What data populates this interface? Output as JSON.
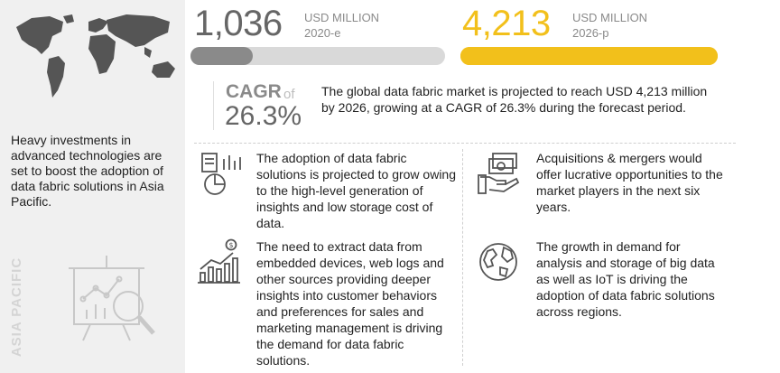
{
  "left": {
    "description": "Heavy investments in advanced technologies are set to boost the adoption of data fabric solutions in Asia Pacific.",
    "region": "ASIA PACIFIC",
    "map_icon": "world-map-icon",
    "analysis_icon": "analysis-magnifier-icon"
  },
  "stats": [
    {
      "value": "1,036",
      "unit": "USD MILLION",
      "year": "2020-e",
      "color": "#666666",
      "bar_fill_color": "#8a8a8a",
      "bar_track_color": "#d9d9d9",
      "bar_fill_fraction": 0.246
    },
    {
      "value": "4,213",
      "unit": "USD MILLION",
      "year": "2026-p",
      "color": "#f2c01b",
      "bar_fill_color": "#f2c01b",
      "bar_track_color": "#f2c01b",
      "bar_fill_fraction": 1.0
    }
  ],
  "cagr": {
    "label": "CAGR",
    "of": "of",
    "value": "26.3%",
    "summary": "The global data fabric market is projected to reach USD 4,213 million by 2026, growing at a CAGR of 26.3% during the forecast period."
  },
  "features": [
    {
      "icon": "pie-chart-report-icon",
      "text": "The adoption of data fabric solutions is projected to grow owing to the high-level generation of insights and low storage cost of data."
    },
    {
      "icon": "money-hand-icon",
      "text": "Acquisitions & mergers would offer lucrative opportunities to the market players in the next six years."
    },
    {
      "icon": "growth-bar-chart-icon",
      "text": "The need to extract data from embedded devices, web logs and other sources providing deeper insights into customer behaviors and preferences for sales and marketing management  is driving the demand for data fabric solutions."
    },
    {
      "icon": "globe-icon",
      "text": "The growth in demand for analysis and storage of big data as well as IoT is driving the adoption of data fabric solutions across regions."
    }
  ]
}
